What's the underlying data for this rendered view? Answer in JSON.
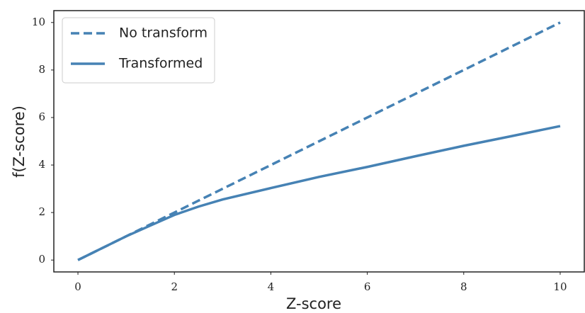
{
  "chart_data": {
    "type": "line",
    "xlabel": "Z-score",
    "ylabel": "f(Z-score)",
    "x": [
      0,
      0.5,
      1,
      1.5,
      2,
      2.5,
      3,
      4,
      5,
      6,
      7,
      8,
      9,
      10
    ],
    "series": [
      {
        "name": "No transform",
        "color": "#4682b4",
        "dash": true,
        "values": [
          0,
          0.5,
          1,
          1.5,
          2,
          2.5,
          3,
          4,
          5,
          6,
          7,
          8,
          9,
          10
        ]
      },
      {
        "name": "Transformed",
        "color": "#4682b4",
        "dash": false,
        "values": [
          0,
          0.5,
          1,
          1.45,
          1.9,
          2.25,
          2.55,
          3.03,
          3.5,
          3.92,
          4.37,
          4.81,
          5.22,
          5.64
        ]
      }
    ],
    "xlim": [
      -0.5,
      10.5
    ],
    "ylim": [
      -0.5,
      10.5
    ],
    "xticks": [
      0,
      2,
      4,
      6,
      8,
      10
    ],
    "yticks": [
      0,
      2,
      4,
      6,
      8,
      10
    ],
    "legend": "upper left"
  }
}
